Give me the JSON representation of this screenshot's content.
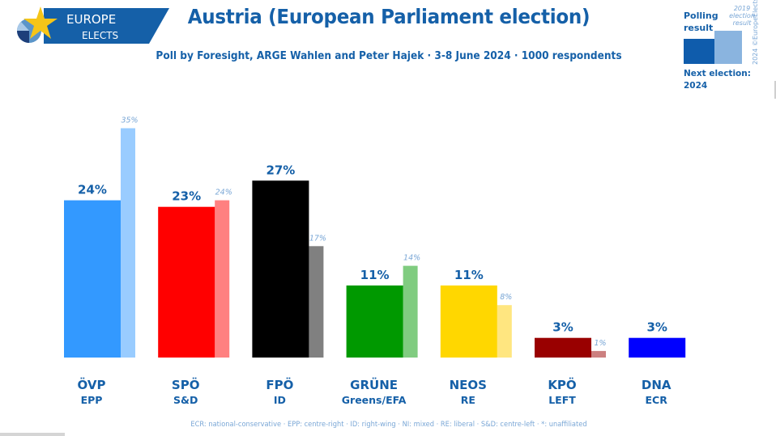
{
  "logo": {
    "line1": "EUROPE",
    "line2": "ELECTS"
  },
  "title": "Austria (European Parliament election)",
  "subtitle": "Poll by Foresight, ARGE Wahlen and Peter Hajek · 3-8 June 2024 · 1000 respondents",
  "legend": {
    "polling_label_1": "Polling",
    "polling_label_2": "result",
    "previous_label_1": "2019",
    "previous_label_2": "election",
    "previous_label_3": "result",
    "copyright": "2024 ©EuropeElects",
    "next_election_label": "Next election:",
    "next_election_year": "2024",
    "polling_color": "#0f5cac",
    "previous_color": "#8ab4df"
  },
  "footnote": "ECR: national-conservative · EPP: centre-right · ID: right-wing · NI: mixed · RE: liberal · S&D: centre-left · *: unaffiliated",
  "chart_data": {
    "type": "bar",
    "title": "Austria (European Parliament election)",
    "subtitle": "Poll by Foresight, ARGE Wahlen and Peter Hajek · 3-8 June 2024 · 1000 respondents",
    "xlabel": "",
    "ylabel": "",
    "ylim": [
      0,
      35
    ],
    "grid": false,
    "legend_position": "top-right",
    "categories": [
      "ÖVP",
      "SPÖ",
      "FPÖ",
      "GRÜNE",
      "NEOS",
      "KPÖ",
      "DNA"
    ],
    "groups": [
      "EPP",
      "S&D",
      "ID",
      "Greens/EFA",
      "RE",
      "LEFT",
      "ECR"
    ],
    "series": [
      {
        "name": "Polling result",
        "values": [
          24,
          23,
          27,
          11,
          11,
          3,
          3
        ],
        "labels": [
          "24%",
          "23%",
          "27%",
          "11%",
          "11%",
          "3%",
          "3%"
        ],
        "colors": [
          "#3399ff",
          "#ff0000",
          "#000000",
          "#009900",
          "#ffd700",
          "#990000",
          "#0000ff"
        ]
      },
      {
        "name": "2019 election result",
        "values": [
          35,
          24,
          17,
          14,
          8,
          1,
          null
        ],
        "labels": [
          "35%",
          "24%",
          "17%",
          "14%",
          "8%",
          "1%",
          ""
        ],
        "colors": [
          "#99ccff",
          "#ff8080",
          "#808080",
          "#80cc80",
          "#ffe680",
          "#cc8080",
          "#8080ff"
        ]
      }
    ]
  }
}
